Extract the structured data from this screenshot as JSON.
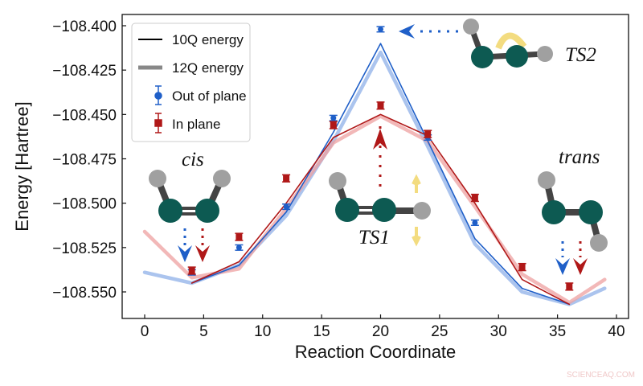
{
  "chart_data": {
    "type": "line",
    "xlabel": "Reaction Coordinate",
    "ylabel": "Energy [Hartree]",
    "xlim": [
      -2,
      41
    ],
    "ylim": [
      -108.5649,
      -108.3937
    ],
    "xticks": [
      0,
      5,
      10,
      15,
      20,
      25,
      30,
      35,
      40
    ],
    "xtick_labels": [
      "0",
      "5",
      "10",
      "15",
      "20",
      "25",
      "30",
      "35",
      "40"
    ],
    "yticks": [
      -108.4,
      -108.425,
      -108.45,
      -108.475,
      -108.5,
      -108.525,
      -108.55
    ],
    "ytick_labels": [
      "−108.400",
      "−108.425",
      "−108.450",
      "−108.475",
      "−108.500",
      "−108.525",
      "−108.550"
    ],
    "grid": false,
    "legend_position": "top-left",
    "legend": [
      {
        "label": "10Q energy",
        "style": "thin-line",
        "color": "#000000"
      },
      {
        "label": "12Q energy",
        "style": "thick-line",
        "color": "#888888"
      },
      {
        "label": "Out of plane",
        "style": "circle-errorbar",
        "color": "#1f5fc8"
      },
      {
        "label": "In plane",
        "style": "square-errorbar",
        "color": "#b01818"
      }
    ],
    "colors": {
      "out_of_plane": "#1f5fc8",
      "in_plane": "#b01818",
      "out_of_plane_12q": "#8fb0e8",
      "in_plane_12q": "#eea0a0"
    },
    "series": [
      {
        "name": "10Q energy",
        "group": "Out of plane",
        "x": [
          4,
          8,
          12,
          16,
          20,
          24,
          28,
          32,
          36
        ],
        "y": [
          -108.545,
          -108.535,
          -108.505,
          -108.46,
          -108.41,
          -108.465,
          -108.52,
          -108.548,
          -108.557
        ]
      },
      {
        "name": "10Q energy",
        "group": "In plane",
        "x": [
          4,
          8,
          12,
          16,
          20,
          24,
          28,
          32,
          36
        ],
        "y": [
          -108.545,
          -108.533,
          -108.5,
          -108.463,
          -108.45,
          -108.462,
          -108.5,
          -108.543,
          -108.557
        ]
      },
      {
        "name": "12Q energy",
        "group": "Out of plane",
        "x": [
          0,
          4,
          8,
          12,
          16,
          20,
          24,
          28,
          32,
          36,
          39
        ],
        "y": [
          -108.539,
          -108.545,
          -108.535,
          -108.507,
          -108.465,
          -108.415,
          -108.468,
          -108.523,
          -108.55,
          -108.557,
          -108.548
        ]
      },
      {
        "name": "12Q energy",
        "group": "In plane",
        "x": [
          0,
          4,
          8,
          12,
          16,
          20,
          24,
          28,
          32,
          36,
          39
        ],
        "y": [
          -108.516,
          -108.542,
          -108.537,
          -108.503,
          -108.466,
          -108.451,
          -108.465,
          -108.502,
          -108.54,
          -108.556,
          -108.543
        ]
      },
      {
        "name": "Out of plane",
        "x": [
          4,
          8,
          12,
          16,
          20,
          24,
          28
        ],
        "y": [
          -108.539,
          -108.525,
          -108.502,
          -108.452,
          -108.402,
          -108.463,
          -108.511
        ],
        "err": 0.0015
      },
      {
        "name": "In plane",
        "x": [
          4,
          8,
          12,
          16,
          20,
          24,
          28,
          32,
          36
        ],
        "y": [
          -108.538,
          -108.519,
          -108.486,
          -108.456,
          -108.445,
          -108.461,
          -108.497,
          -108.536,
          -108.547
        ],
        "err": 0.002
      }
    ],
    "annotations": {
      "cis": "cis",
      "trans": "trans",
      "ts1": "TS1",
      "ts2": "TS2"
    }
  },
  "watermark": "SCIENCEAQ.COM"
}
